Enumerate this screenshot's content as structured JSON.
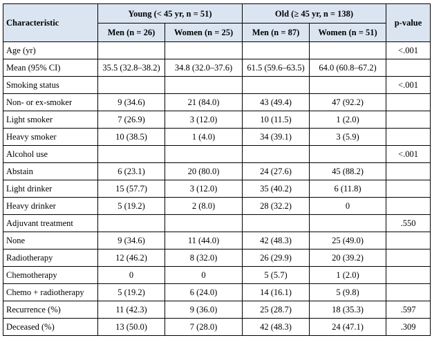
{
  "table": {
    "header": {
      "characteristic": "Characteristic",
      "young": "Young (< 45 yr, n = 51)",
      "old": "Old (≥ 45 yr, n = 138)",
      "pvalue": "p-value",
      "subheads": [
        "Men (n = 26)",
        "Women (n = 25)",
        "Men (n = 87)",
        "Women (n = 51)"
      ]
    },
    "rows": [
      {
        "label": "Age (yr)",
        "cells": [
          "",
          "",
          "",
          ""
        ],
        "p": "<.001"
      },
      {
        "label": "Mean (95% CI)",
        "cells": [
          "35.5 (32.8–38.2)",
          "34.8 (32.0–37.6)",
          "61.5 (59.6–63.5)",
          "64.0 (60.8–67.2)"
        ],
        "p": ""
      },
      {
        "label": "Smoking status",
        "cells": [
          "",
          "",
          "",
          ""
        ],
        "p": "<.001"
      },
      {
        "label": "Non- or ex-smoker",
        "cells": [
          "9 (34.6)",
          "21 (84.0)",
          "43 (49.4)",
          "47 (92.2)"
        ],
        "p": ""
      },
      {
        "label": "Light smoker",
        "cells": [
          "7 (26.9)",
          "3 (12.0)",
          "10 (11.5)",
          "1 (2.0)"
        ],
        "p": ""
      },
      {
        "label": "Heavy smoker",
        "cells": [
          "10 (38.5)",
          "1 (4.0)",
          "34 (39.1)",
          "3 (5.9)"
        ],
        "p": ""
      },
      {
        "label": "Alcohol use",
        "cells": [
          "",
          "",
          "",
          ""
        ],
        "p": "<.001"
      },
      {
        "label": "Abstain",
        "cells": [
          "6 (23.1)",
          "20 (80.0)",
          "24 (27.6)",
          "45 (88.2)"
        ],
        "p": ""
      },
      {
        "label": "Light drinker",
        "cells": [
          "15 (57.7)",
          "3 (12.0)",
          "35 (40.2)",
          "6 (11.8)"
        ],
        "p": ""
      },
      {
        "label": "Heavy drinker",
        "cells": [
          "5 (19.2)",
          "2 (8.0)",
          "28 (32.2)",
          "0"
        ],
        "p": ""
      },
      {
        "label": "Adjuvant treatment",
        "cells": [
          "",
          "",
          "",
          ""
        ],
        "p": ".550"
      },
      {
        "label": "None",
        "cells": [
          "9 (34.6)",
          "11 (44.0)",
          "42 (48.3)",
          "25 (49.0)"
        ],
        "p": ""
      },
      {
        "label": "Radiotherapy",
        "cells": [
          "12 (46.2)",
          "8 (32.0)",
          "26 (29.9)",
          "20 (39.2)"
        ],
        "p": ""
      },
      {
        "label": "Chemotherapy",
        "cells": [
          "0",
          "0",
          "5 (5.7)",
          "1 (2.0)"
        ],
        "p": ""
      },
      {
        "label": "Chemo + radiotherapy",
        "cells": [
          "5 (19.2)",
          "6 (24.0)",
          "14 (16.1)",
          "5 (9.8)"
        ],
        "p": ""
      },
      {
        "label": "Recurrence (%)",
        "cells": [
          "11 (42.3)",
          "9 (36.0)",
          "25 (28.7)",
          "18 (35.3)"
        ],
        "p": ".597"
      },
      {
        "label": "Deceased (%)",
        "cells": [
          "13 (50.0)",
          "7 (28.0)",
          "42 (48.3)",
          "24 (47.1)"
        ],
        "p": ".309"
      }
    ]
  }
}
